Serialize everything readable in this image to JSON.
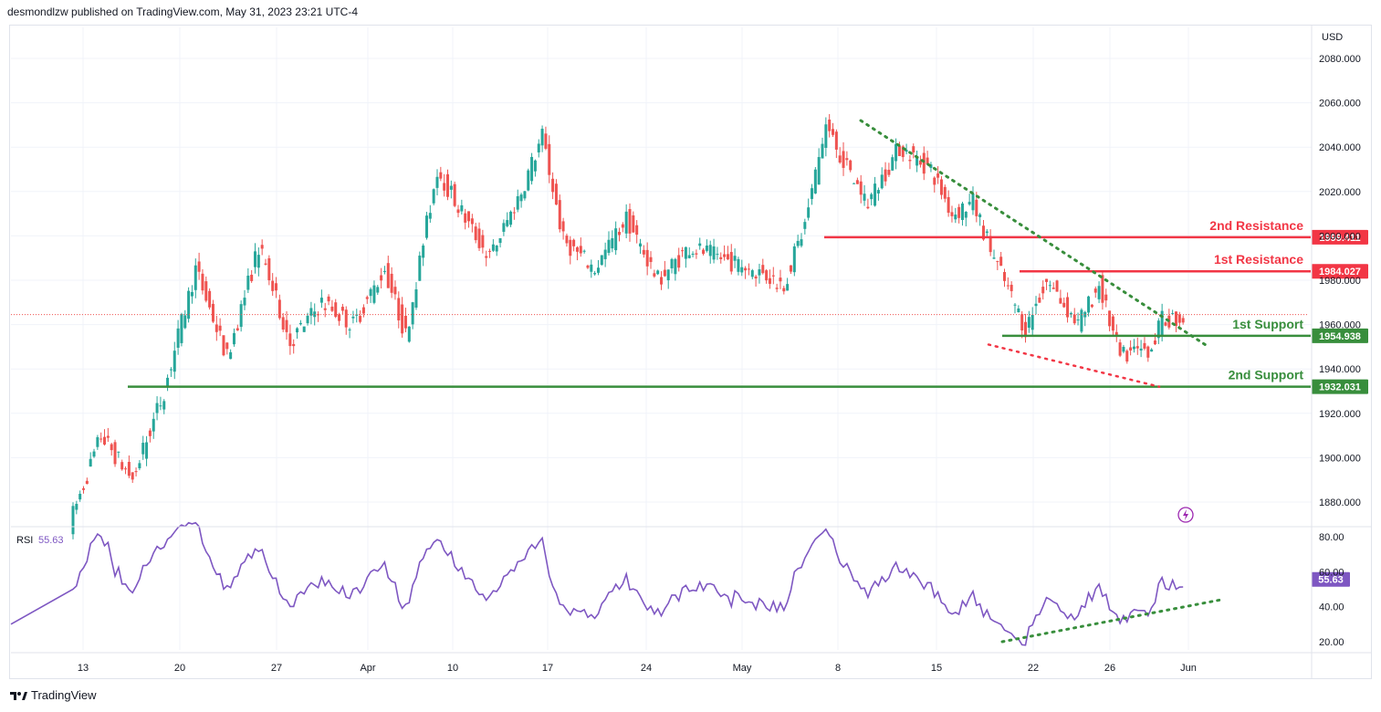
{
  "header": {
    "publish_line": "desmondlzw published on TradingView.com, May 31, 2023 23:21 UTC-4"
  },
  "footer": {
    "brand": "TradingView"
  },
  "colors": {
    "up": "#26a69a",
    "down": "#ef5350",
    "resistance": "#f23645",
    "support": "#388e3c",
    "rsi": "#7e57c2",
    "price_line": "#ef5350"
  },
  "chart_data": {
    "type": "candlestick",
    "currency": "USD",
    "price_axis": {
      "ylim": [
        1870,
        2090
      ],
      "ticks": [
        "1880.000",
        "1900.000",
        "1920.000",
        "1940.000",
        "1960.000",
        "1980.000",
        "2000.000",
        "2020.000",
        "2040.000",
        "2060.000",
        "2080.000"
      ]
    },
    "x_axis": {
      "ticks": [
        "13",
        "20",
        "27",
        "Apr",
        "10",
        "17",
        "24",
        "May",
        "8",
        "15",
        "22",
        "26",
        "Jun"
      ]
    },
    "current_price": 1964.5,
    "levels": [
      {
        "name": "2nd Resistance",
        "value": "1999.411",
        "price": 1999.411,
        "kind": "resistance"
      },
      {
        "name": "1st Resistance",
        "value": "1984.027",
        "price": 1984.027,
        "kind": "resistance"
      },
      {
        "name": "1st Support",
        "value": "1954.938",
        "price": 1954.938,
        "kind": "support"
      },
      {
        "name": "2nd Support",
        "value": "1932.031",
        "price": 1932.031,
        "kind": "support"
      }
    ],
    "trendlines": [
      {
        "name": "descending-resistance-trendline",
        "from": [
          "May 10",
          2052
        ],
        "to": [
          "Jun 2",
          1953
        ]
      },
      {
        "name": "descending-support-trendline",
        "from": [
          "May 19",
          1952
        ],
        "to": [
          "May 29",
          1930
        ]
      }
    ],
    "rsi": {
      "label": "RSI",
      "value": "55.63",
      "ylim": [
        10,
        90
      ],
      "ticks": [
        "20.00",
        "40.00",
        "60.00",
        "80.00"
      ],
      "trendline": {
        "from": [
          "May 19",
          20
        ],
        "to": [
          "Jun 2",
          44
        ]
      }
    },
    "anchors": [
      {
        "x": 0,
        "close": 1870
      },
      {
        "x": 3,
        "close": 1910
      },
      {
        "x": 6,
        "close": 1890
      },
      {
        "x": 9,
        "close": 1930
      },
      {
        "x": 12,
        "close": 1985
      },
      {
        "x": 15,
        "close": 1945
      },
      {
        "x": 18,
        "close": 1995
      },
      {
        "x": 21,
        "close": 1952
      },
      {
        "x": 24,
        "close": 1970
      },
      {
        "x": 27,
        "close": 1960
      },
      {
        "x": 30,
        "close": 1985
      },
      {
        "x": 32,
        "close": 1955
      },
      {
        "x": 35,
        "close": 2030
      },
      {
        "x": 38,
        "close": 2005
      },
      {
        "x": 40,
        "close": 1990
      },
      {
        "x": 43,
        "close": 2020
      },
      {
        "x": 45,
        "close": 2045
      },
      {
        "x": 47,
        "close": 1998
      },
      {
        "x": 50,
        "close": 1985
      },
      {
        "x": 53,
        "close": 2008
      },
      {
        "x": 56,
        "close": 1980
      },
      {
        "x": 59,
        "close": 1995
      },
      {
        "x": 62,
        "close": 1990
      },
      {
        "x": 65,
        "close": 1985
      },
      {
        "x": 68,
        "close": 1978
      },
      {
        "x": 70,
        "close": 2005
      },
      {
        "x": 72,
        "close": 2050
      },
      {
        "x": 74,
        "close": 2030
      },
      {
        "x": 76,
        "close": 2015
      },
      {
        "x": 79,
        "close": 2040
      },
      {
        "x": 82,
        "close": 2030
      },
      {
        "x": 84,
        "close": 2010
      },
      {
        "x": 86,
        "close": 2015
      },
      {
        "x": 88,
        "close": 1990
      },
      {
        "x": 91,
        "close": 1958
      },
      {
        "x": 93,
        "close": 1980
      },
      {
        "x": 96,
        "close": 1960
      },
      {
        "x": 98,
        "close": 1978
      },
      {
        "x": 100,
        "close": 1945
      },
      {
        "x": 103,
        "close": 1950
      },
      {
        "x": 104,
        "close": 1962
      },
      {
        "x": 106,
        "close": 1963
      }
    ]
  }
}
